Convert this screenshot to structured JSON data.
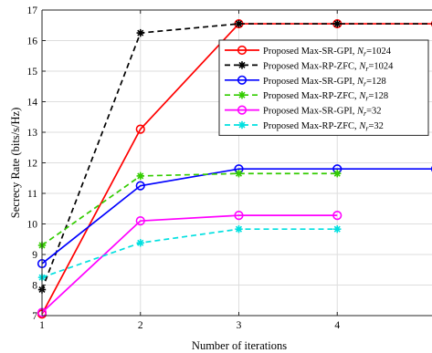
{
  "chart_data": {
    "type": "line",
    "xlabel": "Number of iterations",
    "ylabel": "Secrecy Rate (bits/s/Hz)",
    "xlim": [
      1,
      5
    ],
    "ylim": [
      7,
      17
    ],
    "xticks": [
      1,
      2,
      3,
      4,
      5
    ],
    "yticks": [
      7,
      8,
      9,
      10,
      11,
      12,
      13,
      14,
      15,
      16,
      17
    ],
    "grid": true,
    "legend_position": "top-right",
    "series": [
      {
        "name": "Proposed Max-SR-GPI, N_r=1024",
        "legend_prefix": "Proposed Max-SR-GPI, ",
        "legend_var": "N",
        "legend_sub": "r",
        "legend_suffix": "=1024",
        "color": "#ff0000",
        "dash": "solid",
        "marker": "circle",
        "x": [
          1,
          2,
          3,
          4,
          5
        ],
        "y": [
          7.05,
          13.1,
          16.55,
          16.55,
          16.55
        ]
      },
      {
        "name": "Proposed Max-RP-ZFC, N_r=1024",
        "legend_prefix": "Proposed Max-RP-ZFC, ",
        "legend_var": "N",
        "legend_sub": "r",
        "legend_suffix": "=1024",
        "color": "#000000",
        "dash": "dashed",
        "marker": "star",
        "x": [
          1,
          2,
          3,
          4,
          5
        ],
        "y": [
          7.85,
          16.25,
          16.55,
          16.55,
          16.55
        ]
      },
      {
        "name": "Proposed Max-SR-GPI, N_r=128",
        "legend_prefix": "Proposed Max-SR-GPI, ",
        "legend_var": "N",
        "legend_sub": "r",
        "legend_suffix": "=128",
        "color": "#0000ff",
        "dash": "solid",
        "marker": "circle",
        "x": [
          1,
          2,
          3,
          4,
          5
        ],
        "y": [
          8.7,
          11.25,
          11.8,
          11.8,
          11.8
        ]
      },
      {
        "name": "Proposed Max-RP-ZFC, N_r=128",
        "legend_prefix": "Proposed Max-RP-ZFC, ",
        "legend_var": "N",
        "legend_sub": "r",
        "legend_suffix": "=128",
        "color": "#33cc00",
        "dash": "dashed",
        "marker": "star",
        "x": [
          1,
          2,
          3,
          4
        ],
        "y": [
          9.3,
          11.57,
          11.65,
          11.65
        ]
      },
      {
        "name": "Proposed Max-SR-GPI, N_r=32",
        "legend_prefix": "Proposed Max-SR-GPI, ",
        "legend_var": "N",
        "legend_sub": "r",
        "legend_suffix": "=32",
        "color": "#ff00ff",
        "dash": "solid",
        "marker": "circle",
        "x": [
          1,
          2,
          3,
          4
        ],
        "y": [
          7.1,
          10.1,
          10.28,
          10.28
        ]
      },
      {
        "name": "Proposed Max-RP-ZFC, N_r=32",
        "legend_prefix": "Proposed Max-RP-ZFC, ",
        "legend_var": "N",
        "legend_sub": "r",
        "legend_suffix": "=32",
        "color": "#00e0e0",
        "dash": "dashed",
        "marker": "star",
        "x": [
          1,
          2,
          3,
          4
        ],
        "y": [
          8.25,
          9.38,
          9.83,
          9.83
        ]
      }
    ]
  }
}
